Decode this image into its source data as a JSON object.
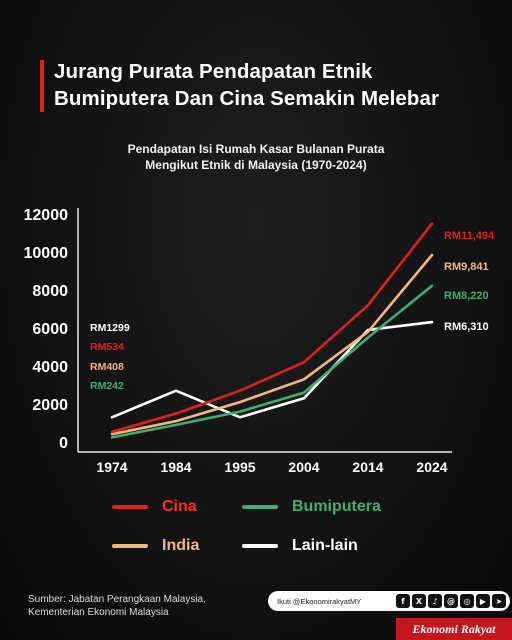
{
  "headline": {
    "line1": "Jurang Purata Pendapatan Etnik",
    "line2": "Bumiputera Dan Cina Semakin Melebar"
  },
  "subtitle": {
    "line1": "Pendapatan Isi Rumah Kasar Bulanan Purata",
    "line2": "Mengikut Etnik di Malaysia (1970-2024)"
  },
  "chart_data": {
    "type": "line",
    "x": [
      "1974",
      "1984",
      "1995",
      "2004",
      "2014",
      "2024"
    ],
    "ylim": [
      0,
      12000
    ],
    "yticks": [
      "0",
      "2000",
      "4000",
      "6000",
      "8000",
      "10000",
      "12000"
    ],
    "grid": false,
    "legend_position": "bottom",
    "series": [
      {
        "name": "Cina",
        "color": "#e01f1f",
        "values": [
          534,
          1500,
          2700,
          4200,
          7200,
          11494
        ],
        "start_label": "RM534",
        "end_label": "RM11,494"
      },
      {
        "name": "India",
        "color": "#f2b877",
        "values": [
          408,
          1100,
          2100,
          3300,
          5800,
          9841
        ],
        "start_label": "RM408",
        "end_label": "RM9,841"
      },
      {
        "name": "Bumiputera",
        "color": "#3fae73",
        "values": [
          242,
          900,
          1600,
          2600,
          5500,
          8220
        ],
        "start_label": "RM242",
        "end_label": "RM8,220"
      },
      {
        "name": "Lain-lain",
        "color": "#ffffff",
        "values": [
          1299,
          2700,
          1300,
          2300,
          5900,
          6310
        ],
        "start_label": "RM1299",
        "end_label": "RM6,310"
      }
    ]
  },
  "legend": [
    {
      "label": "Cina",
      "color": "#e01f1f",
      "label_color": "#ff2a2a"
    },
    {
      "label": "Bumiputera",
      "color": "#3fae73",
      "label_color": "#3fae73"
    },
    {
      "label": "India",
      "color": "#f2b877",
      "label_color": "#f2b877"
    },
    {
      "label": "Lain-lain",
      "color": "#ffffff",
      "label_color": "#ffffff"
    }
  ],
  "source": {
    "line1": "Sumber: Jabatan Perangkaan Malaysia,",
    "line2": "Kementerian Ekonomi Malaysia"
  },
  "follow": {
    "text": "Ikuti @EkonomirakyatMY",
    "icons": [
      "facebook-icon",
      "x-icon",
      "tiktok-icon",
      "threads-icon",
      "instagram-icon",
      "youtube-icon",
      "telegram-icon"
    ],
    "glyphs": [
      "f",
      "X",
      "♪",
      "@",
      "◎",
      "▶",
      "➤"
    ]
  },
  "brand": "Ekonomi Rakyat"
}
